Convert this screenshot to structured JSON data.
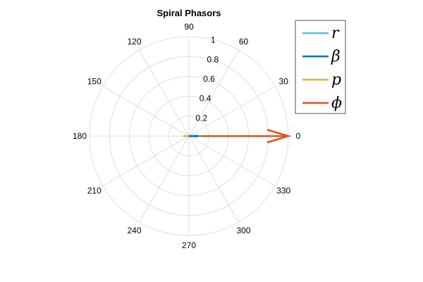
{
  "chart_data": {
    "type": "polar-compass",
    "title": "Spiral Phasors",
    "rlim": [
      0,
      1
    ],
    "r_ticks": [
      "0.2",
      "0.4",
      "0.6",
      "0.8",
      "1"
    ],
    "theta_ticks": [
      "0",
      "30",
      "60",
      "90",
      "120",
      "150",
      "180",
      "210",
      "240",
      "270",
      "300",
      "330"
    ],
    "grid": true,
    "legend_position": "right",
    "series": [
      {
        "name": "r",
        "color": "#4DBEEE",
        "theta_deg": 0,
        "magnitude": 0.1
      },
      {
        "name": "β",
        "color": "#0072BD",
        "theta_deg": 0,
        "magnitude": 0.08
      },
      {
        "name": "p",
        "color": "#EDB120",
        "theta_deg": 180,
        "magnitude": 0.04
      },
      {
        "name": "ϕ",
        "color": "#D95319",
        "theta_deg": 0,
        "magnitude": 1.0
      }
    ]
  }
}
